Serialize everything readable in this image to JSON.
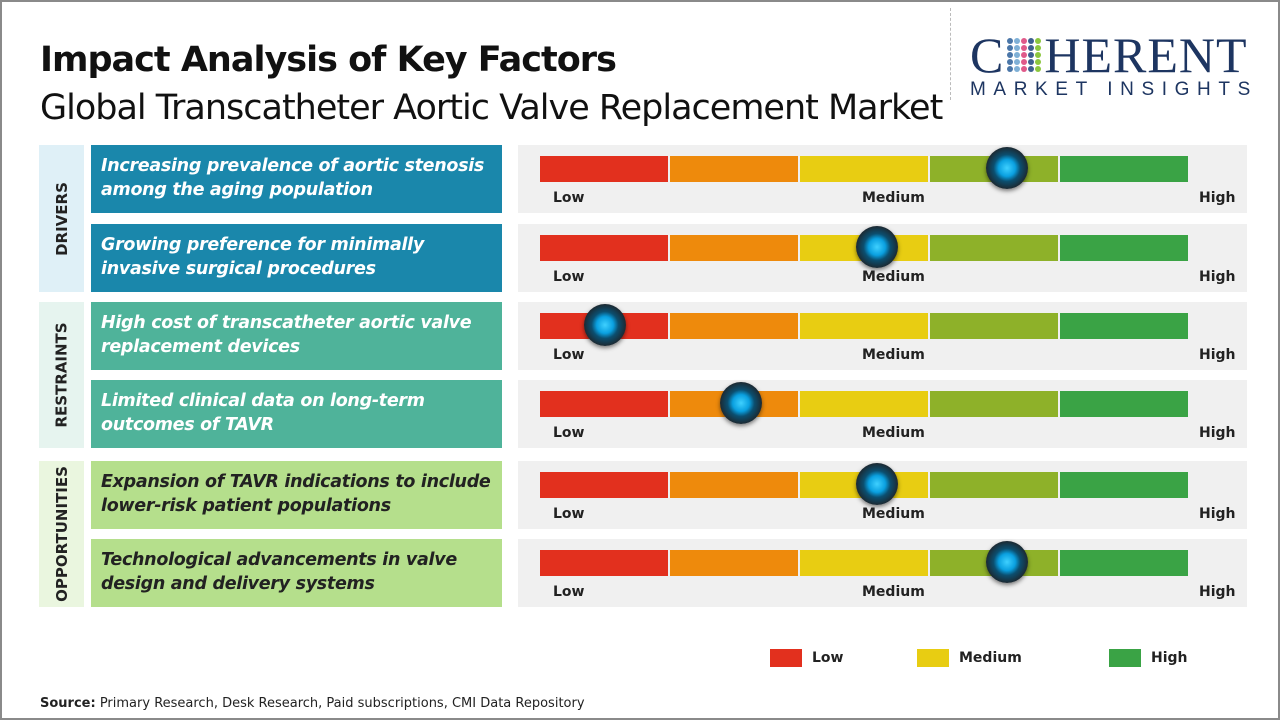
{
  "title": "Impact Analysis of Key Factors",
  "subtitle": "Global Transcatheter Aortic Valve Replacement Market",
  "logo": {
    "main": "COHERENT",
    "sub": "MARKET INSIGHTS"
  },
  "colors": {
    "drivers": "#1a87ab",
    "restraints": "#4fb39a",
    "opportunities": "#b5df8c",
    "segments": [
      "#e2301e",
      "#ee8a0c",
      "#e8cd12",
      "#8eb129",
      "#3aa345"
    ]
  },
  "categories": [
    {
      "label": "DRIVERS",
      "factors": [
        {
          "text": "Increasing prevalence of aortic stenosis among the aging population",
          "impact": 0.72
        },
        {
          "text": "Growing preference for minimally invasive surgical procedures",
          "impact": 0.52
        }
      ]
    },
    {
      "label": "RESTRAINTS",
      "factors": [
        {
          "text": "High cost of transcatheter aortic valve replacement devices",
          "impact": 0.1
        },
        {
          "text": "Limited clinical data on long-term outcomes of TAVR",
          "impact": 0.31
        }
      ]
    },
    {
      "label": "OPPORTUNITIES",
      "factors": [
        {
          "text": "Expansion of TAVR indications to include lower-risk patient populations",
          "impact": 0.52
        },
        {
          "text": "Technological advancements in valve design and delivery systems",
          "impact": 0.72
        }
      ]
    }
  ],
  "scale": {
    "low": "Low",
    "medium": "Medium",
    "high": "High"
  },
  "legend": [
    {
      "label": "Low",
      "color": "#e2301e"
    },
    {
      "label": "Medium",
      "color": "#e8cd12"
    },
    {
      "label": "High",
      "color": "#3aa345"
    }
  ],
  "source": {
    "label": "Source:",
    "text": " Primary Research, Desk Research, Paid subscriptions, CMI Data Repository"
  }
}
